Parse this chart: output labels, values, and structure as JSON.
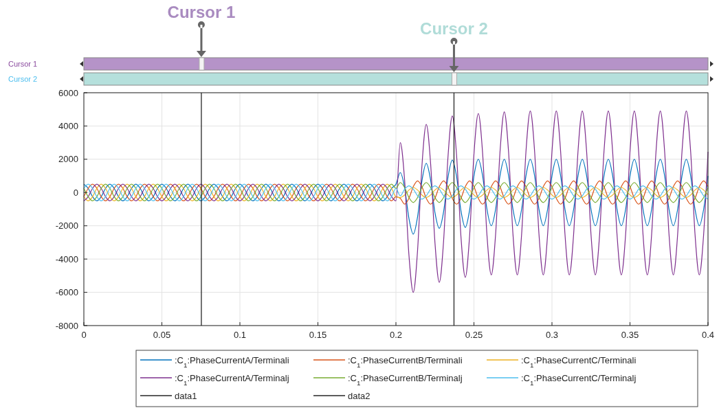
{
  "chart_data": {
    "type": "line",
    "x": [
      0,
      0.00278,
      0.00556,
      0.00833,
      0.01111,
      0.01389,
      0.01667,
      0.01944,
      0.02222,
      0.025,
      0.02778,
      0.03056,
      0.03333,
      0.03611,
      0.03889,
      0.04167,
      0.04444,
      0.04722,
      0.05,
      0.05278,
      0.05556,
      0.05833,
      0.06111,
      0.06389,
      0.06667,
      0.06944,
      0.07222,
      0.075,
      0.07778,
      0.08056,
      0.08333,
      0.08611,
      0.08889,
      0.09167,
      0.09444,
      0.09722,
      0.1,
      0.10278,
      0.10556,
      0.10833,
      0.11111,
      0.11389,
      0.11667,
      0.11944,
      0.12222,
      0.125,
      0.12778,
      0.13056,
      0.13333,
      0.13611,
      0.13889,
      0.14167,
      0.14444,
      0.14722,
      0.15,
      0.15278,
      0.15556,
      0.15833,
      0.16111,
      0.16389,
      0.16667,
      0.16944,
      0.17222,
      0.175,
      0.17778,
      0.18056,
      0.18333,
      0.18611,
      0.18889,
      0.19167,
      0.19444,
      0.19722,
      0.2,
      0.20278,
      0.20556,
      0.20833,
      0.21111,
      0.21389,
      0.21667,
      0.21944,
      0.22222,
      0.225,
      0.22778,
      0.23056,
      0.23333,
      0.23611,
      0.23889,
      0.24167,
      0.24444,
      0.24722,
      0.25,
      0.25278,
      0.25556,
      0.25833,
      0.26111,
      0.26389,
      0.26667,
      0.26944,
      0.27222,
      0.275,
      0.27778,
      0.28056,
      0.28333,
      0.28611,
      0.28889,
      0.29167,
      0.29444,
      0.29722,
      0.3,
      0.30278,
      0.30556,
      0.30833,
      0.31111,
      0.31389,
      0.31667,
      0.31944,
      0.32222,
      0.325,
      0.32778,
      0.33056,
      0.33333,
      0.33611,
      0.33889,
      0.34167,
      0.34444,
      0.34722,
      0.35,
      0.35278,
      0.35556,
      0.35833,
      0.36111,
      0.36389,
      0.36667,
      0.36944,
      0.37222,
      0.375,
      0.37778,
      0.38056,
      0.38333,
      0.38611,
      0.38889,
      0.39167,
      0.39444,
      0.39722,
      0.4
    ],
    "series": [
      {
        "name": ":C$_{1}$:PhaseCurrentA/Terminali",
        "color": "#0072bd",
        "values": [
          500,
          250,
          -250,
          -500,
          -250,
          250,
          500,
          250,
          -250,
          -500,
          -250,
          250,
          500,
          250,
          -250,
          -500,
          -250,
          250,
          500,
          250,
          -250,
          -500,
          -250,
          250,
          500,
          250,
          -250,
          -500,
          -250,
          250,
          500,
          250,
          -250,
          -500,
          -250,
          250,
          500,
          250,
          -250,
          -500,
          -250,
          250,
          500,
          250,
          -250,
          -500,
          -250,
          250,
          500,
          250,
          -250,
          -500,
          -250,
          250,
          500,
          250,
          -250,
          -500,
          -250,
          250,
          500,
          250,
          -250,
          -500,
          -250,
          250,
          500,
          250,
          -250,
          -500,
          -250,
          250,
          500,
          1200,
          300,
          -1550,
          -2500,
          -1450,
          700,
          1750,
          750,
          -1200,
          -2150,
          -1150,
          900,
          1950,
          950,
          -1100,
          -2100,
          -1050,
          1000,
          2000,
          1000,
          -1000,
          -2000,
          -1000,
          1000,
          2000,
          1000,
          -1000,
          -2000,
          -1000,
          1000,
          2000,
          1000,
          -1000,
          -2000,
          -1000,
          1000,
          2000,
          1000,
          -1000,
          -2000,
          -1000,
          1000,
          2000,
          1000,
          -1000,
          -2000,
          -1000,
          1000,
          2000,
          1000,
          -1000,
          -2000,
          -1000,
          1000,
          2000,
          1000,
          -1000,
          -2000,
          -1000,
          1000,
          2000,
          1000,
          -1000,
          -2000,
          -1000,
          1000,
          2000,
          1000,
          -1000,
          -2000,
          -1000,
          1000
        ]
      },
      {
        "name": ":C$_{1}$:PhaseCurrentB/Terminali",
        "color": "#d95319",
        "values": [
          -250,
          250,
          500,
          250,
          -250,
          -500,
          -250,
          250,
          500,
          250,
          -250,
          -500,
          -250,
          250,
          500,
          250,
          -250,
          -500,
          -250,
          250,
          500,
          250,
          -250,
          -500,
          -250,
          250,
          500,
          250,
          -250,
          -500,
          -250,
          250,
          500,
          250,
          -250,
          -500,
          -250,
          250,
          500,
          250,
          -250,
          -500,
          -250,
          250,
          500,
          250,
          -250,
          -500,
          -250,
          250,
          500,
          250,
          -250,
          -500,
          -250,
          250,
          500,
          250,
          -250,
          -500,
          -250,
          250,
          500,
          250,
          -250,
          -500,
          -250,
          250,
          500,
          250,
          -250,
          -500,
          -250,
          -350,
          -700,
          -350,
          350,
          700,
          350,
          -350,
          -700,
          -350,
          350,
          700,
          350,
          -350,
          -700,
          -350,
          350,
          700,
          350,
          -350,
          -700,
          -350,
          350,
          700,
          350,
          -350,
          -700,
          -350,
          350,
          700,
          350,
          -350,
          -700,
          -350,
          350,
          700,
          350,
          -350,
          -700,
          -350,
          350,
          700,
          350,
          -350,
          -700,
          -350,
          350,
          700,
          350,
          -350,
          -700,
          -350,
          350,
          700,
          350,
          -350,
          -700,
          -350,
          350,
          700,
          350,
          -350,
          -700,
          -350,
          350,
          700,
          350,
          -350,
          -700,
          -350,
          350,
          700,
          350
        ]
      },
      {
        "name": ":C$_{1}$:PhaseCurrentC/Terminali",
        "color": "#edb120",
        "values": [
          -250,
          -500,
          -250,
          250,
          500,
          250,
          -250,
          -500,
          -250,
          250,
          500,
          250,
          -250,
          -500,
          -250,
          250,
          500,
          250,
          -250,
          -500,
          -250,
          250,
          500,
          250,
          -250,
          -500,
          -250,
          250,
          500,
          250,
          -250,
          -500,
          -250,
          250,
          500,
          250,
          -250,
          -500,
          -250,
          250,
          500,
          250,
          -250,
          -500,
          -250,
          250,
          500,
          250,
          -250,
          -500,
          -250,
          250,
          500,
          250,
          -250,
          -500,
          -250,
          250,
          500,
          250,
          -250,
          -500,
          -250,
          250,
          500,
          250,
          -250,
          -500,
          -250,
          250,
          500,
          250,
          -250,
          -300,
          -150,
          150,
          300,
          150,
          -150,
          -300,
          -150,
          150,
          300,
          150,
          -150,
          -300,
          -150,
          150,
          300,
          150,
          -150,
          -300,
          -150,
          150,
          300,
          150,
          -150,
          -300,
          -150,
          150,
          300,
          150,
          -150,
          -300,
          -150,
          150,
          300,
          150,
          -150,
          -300,
          -150,
          150,
          300,
          150,
          -150,
          -300,
          -150,
          150,
          300,
          150,
          -150,
          -300,
          -150,
          150,
          300,
          150,
          -150,
          -300,
          -150,
          150,
          300,
          150,
          -150,
          -300,
          -150,
          150,
          300,
          150,
          -150,
          -300,
          -150,
          150,
          300,
          150,
          -150
        ]
      },
      {
        "name": ":C$_{1}$:PhaseCurrentA/Terminalj",
        "color": "#7e2f8e",
        "values": [
          -500,
          -250,
          250,
          500,
          250,
          -250,
          -500,
          -250,
          250,
          500,
          250,
          -250,
          -500,
          -250,
          250,
          500,
          250,
          -250,
          -500,
          -250,
          250,
          500,
          250,
          -250,
          -500,
          -250,
          250,
          500,
          250,
          -250,
          -500,
          -250,
          250,
          500,
          250,
          -250,
          -500,
          -250,
          250,
          500,
          250,
          -250,
          -500,
          -250,
          250,
          500,
          250,
          -250,
          -500,
          -250,
          250,
          500,
          250,
          -250,
          -500,
          -250,
          250,
          500,
          250,
          -250,
          -500,
          -250,
          250,
          500,
          250,
          -250,
          -500,
          -250,
          250,
          500,
          250,
          -250,
          -500,
          3000,
          750,
          -3750,
          -6000,
          -3450,
          1600,
          4100,
          1750,
          -3000,
          -5400,
          -2900,
          2100,
          4600,
          2200,
          -2650,
          -5100,
          -2600,
          2300,
          4750,
          2350,
          -2550,
          -4950,
          -2500,
          2400,
          4850,
          2400,
          -2500,
          -4950,
          -2500,
          2450,
          4900,
          2450,
          -2500,
          -4950,
          -2500,
          2450,
          4900,
          2450,
          -2500,
          -4950,
          -2500,
          2450,
          4900,
          2450,
          -2500,
          -4950,
          -2500,
          2450,
          4900,
          2450,
          -2500,
          -4950,
          -2500,
          2450,
          4900,
          2450,
          -2500,
          -4950,
          -2500,
          2450,
          4900,
          2450,
          -2500,
          -4950,
          -2500,
          2450,
          4900,
          2450,
          -2500,
          -4950,
          -2500,
          2450
        ]
      },
      {
        "name": ":C$_{1}$:PhaseCurrentB/Terminalj",
        "color": "#77ac30",
        "values": [
          250,
          -250,
          -500,
          -250,
          250,
          500,
          250,
          -250,
          -500,
          -250,
          250,
          500,
          250,
          -250,
          -500,
          -250,
          250,
          500,
          250,
          -250,
          -500,
          -250,
          250,
          500,
          250,
          -250,
          -500,
          -250,
          250,
          500,
          250,
          -250,
          -500,
          -250,
          250,
          500,
          250,
          -250,
          -500,
          -250,
          250,
          500,
          250,
          -250,
          -500,
          -250,
          250,
          500,
          250,
          -250,
          -500,
          -250,
          250,
          500,
          250,
          -250,
          -500,
          -250,
          250,
          500,
          250,
          -250,
          -500,
          -250,
          250,
          500,
          250,
          -250,
          -500,
          -250,
          250,
          500,
          250,
          600,
          300,
          -300,
          -600,
          -300,
          300,
          600,
          300,
          -300,
          -600,
          -300,
          300,
          600,
          300,
          -300,
          -600,
          -300,
          300,
          600,
          300,
          -300,
          -600,
          -300,
          300,
          600,
          300,
          -300,
          -600,
          -300,
          300,
          600,
          300,
          -300,
          -600,
          -300,
          300,
          600,
          300,
          -300,
          -600,
          -300,
          300,
          600,
          300,
          -300,
          -600,
          -300,
          300,
          600,
          300,
          -300,
          -600,
          -300,
          300,
          600,
          300,
          -300,
          -600,
          -300,
          300,
          600,
          300,
          -300,
          -600,
          -300,
          300,
          600,
          300,
          -300,
          -600,
          -300,
          300
        ]
      },
      {
        "name": ":C$_{1}$:PhaseCurrentC/Terminalj",
        "color": "#4dbeee",
        "values": [
          250,
          500,
          250,
          -250,
          -500,
          -250,
          250,
          500,
          250,
          -250,
          -500,
          -250,
          250,
          500,
          250,
          -250,
          -500,
          -250,
          250,
          500,
          250,
          -250,
          -500,
          -250,
          250,
          500,
          250,
          -250,
          -500,
          -250,
          250,
          500,
          250,
          -250,
          -500,
          -250,
          250,
          500,
          250,
          -250,
          -500,
          -250,
          250,
          500,
          250,
          -250,
          -500,
          -250,
          250,
          500,
          250,
          -250,
          -500,
          -250,
          250,
          500,
          250,
          -250,
          -500,
          -250,
          250,
          500,
          250,
          -250,
          -500,
          -250,
          250,
          500,
          250,
          -250,
          -500,
          -250,
          250,
          -200,
          200,
          400,
          200,
          -200,
          -400,
          -200,
          200,
          400,
          200,
          -200,
          -400,
          -200,
          200,
          400,
          200,
          -200,
          -400,
          -200,
          200,
          400,
          200,
          -200,
          -400,
          -200,
          200,
          400,
          200,
          -200,
          -400,
          -200,
          200,
          400,
          200,
          -200,
          -400,
          -200,
          200,
          400,
          200,
          -200,
          -400,
          -200,
          200,
          400,
          200,
          -200,
          -400,
          -200,
          200,
          400,
          200,
          -200,
          -400,
          -200,
          200,
          400,
          200,
          -200,
          -400,
          -200,
          200,
          400,
          200,
          -200,
          -400,
          -200,
          200,
          400,
          200,
          -200,
          -400
        ]
      }
    ],
    "xlim": [
      0,
      0.4
    ],
    "xticks": [
      0,
      0.05,
      0.1,
      0.15,
      0.2,
      0.25,
      0.3,
      0.35,
      0.4
    ],
    "ylim": [
      -8000,
      6000
    ],
    "yticks": [
      -8000,
      -6000,
      -4000,
      -2000,
      0,
      2000,
      4000,
      6000
    ],
    "grid": true,
    "legend": "bottom",
    "ref_lines": [
      {
        "axis": "x",
        "value": 0.0753,
        "label": "data1",
        "color": "#262626"
      },
      {
        "axis": "x",
        "value": 0.2372,
        "label": "data2",
        "color": "#262626"
      }
    ],
    "annotations": [
      "Cursor 1",
      "Cursor 2"
    ]
  }
}
